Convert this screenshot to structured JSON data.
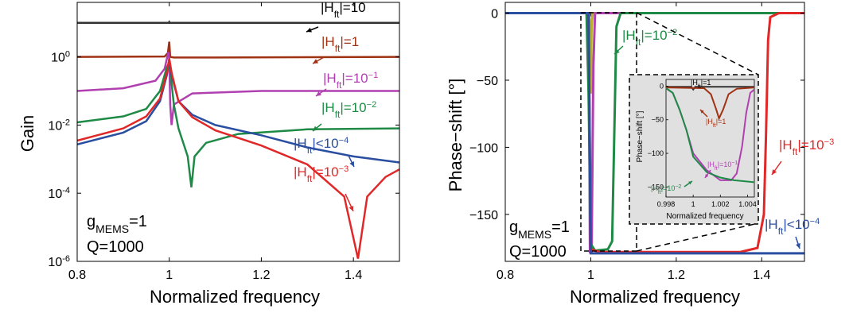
{
  "colors": {
    "black": "#333333",
    "brown": "#a03214",
    "magenta": "#b040b0",
    "green": "#1e8a46",
    "blue": "#2a4ea0",
    "red": "#e02828",
    "olive": "#b8b030",
    "inset_bg": "#e0e0e0"
  },
  "chart_data": [
    {
      "type": "line",
      "title": "",
      "xlabel": "Normalized frequency",
      "ylabel": "Gain",
      "xlim": [
        0.8,
        1.5
      ],
      "ylim_log10": [
        -6,
        1.6
      ],
      "yscale": "log",
      "grid": false,
      "x_ticks": [
        "0.8",
        "1",
        "1.2",
        "1.4"
      ],
      "y_ticks": [
        {
          "base": "10",
          "exp": "-6"
        },
        {
          "base": "10",
          "exp": "-4"
        },
        {
          "base": "10",
          "exp": "-2"
        },
        {
          "base": "10",
          "exp": "0"
        }
      ],
      "params": {
        "g": {
          "sym": "g",
          "sub": "MEMS",
          "rest": "=1"
        },
        "q": "Q=1000"
      },
      "series": [
        {
          "key": "H10",
          "label": {
            "pre": "|H",
            "sub": "ft",
            "post": "|=10",
            "sup": ""
          },
          "color_key": "black",
          "points": [
            [
              0.8,
              10
            ],
            [
              0.999,
              10
            ],
            [
              1.0,
              10.6
            ],
            [
              1.001,
              10
            ],
            [
              1.5,
              10
            ]
          ]
        },
        {
          "key": "H1",
          "label": {
            "pre": "|H",
            "sub": "ft",
            "post": "|=1",
            "sup": ""
          },
          "color_key": "brown",
          "points": [
            [
              0.8,
              1.0
            ],
            [
              0.99,
              1.03
            ],
            [
              0.997,
              1.3
            ],
            [
              1.0,
              2.8
            ],
            [
              1.002,
              1.0
            ],
            [
              1.01,
              0.96
            ],
            [
              1.1,
              0.96
            ],
            [
              1.5,
              1.0
            ]
          ]
        },
        {
          "key": "Hm1",
          "label": {
            "pre": "|H",
            "sub": "ft",
            "post": "|=10",
            "sup": "−1"
          },
          "color_key": "magenta",
          "points": [
            [
              0.8,
              0.1
            ],
            [
              0.9,
              0.12
            ],
            [
              0.97,
              0.2
            ],
            [
              0.99,
              0.45
            ],
            [
              0.998,
              1.4
            ],
            [
              1.0,
              0.9
            ],
            [
              1.002,
              0.04
            ],
            [
              1.005,
              0.01
            ],
            [
              1.01,
              0.04
            ],
            [
              1.05,
              0.085
            ],
            [
              1.2,
              0.1
            ],
            [
              1.5,
              0.1
            ]
          ]
        },
        {
          "key": "Hm2",
          "label": {
            "pre": "|H",
            "sub": "ft",
            "post": "|=10",
            "sup": "−2"
          },
          "color_key": "green",
          "points": [
            [
              0.8,
              0.012
            ],
            [
              0.9,
              0.018
            ],
            [
              0.95,
              0.03
            ],
            [
              0.98,
              0.1
            ],
            [
              0.995,
              0.5
            ],
            [
              1.0,
              0.7
            ],
            [
              1.01,
              0.04
            ],
            [
              1.02,
              0.008
            ],
            [
              1.04,
              0.0012
            ],
            [
              1.048,
              0.00015
            ],
            [
              1.055,
              0.0012
            ],
            [
              1.08,
              0.003
            ],
            [
              1.15,
              0.0055
            ],
            [
              1.3,
              0.0075
            ],
            [
              1.5,
              0.008
            ]
          ]
        },
        {
          "key": "Hlt4",
          "label": {
            "pre": "|H",
            "sub": "ft",
            "post": "|<10",
            "sup": "−4"
          },
          "color_key": "blue",
          "points": [
            [
              0.8,
              0.0027
            ],
            [
              0.9,
              0.006
            ],
            [
              0.95,
              0.013
            ],
            [
              0.98,
              0.05
            ],
            [
              0.995,
              0.3
            ],
            [
              1.0,
              0.85
            ],
            [
              1.005,
              0.3
            ],
            [
              1.02,
              0.05
            ],
            [
              1.05,
              0.02
            ],
            [
              1.1,
              0.01
            ],
            [
              1.2,
              0.005
            ],
            [
              1.3,
              0.0022
            ],
            [
              1.4,
              0.0012
            ],
            [
              1.5,
              0.0008
            ]
          ]
        },
        {
          "key": "Hm3",
          "label": {
            "pre": "|H",
            "sub": "ft",
            "post": "|=10",
            "sup": "−3"
          },
          "color_key": "red",
          "points": [
            [
              0.8,
              0.0035
            ],
            [
              0.9,
              0.008
            ],
            [
              0.95,
              0.018
            ],
            [
              0.98,
              0.06
            ],
            [
              0.995,
              0.35
            ],
            [
              1.0,
              0.9
            ],
            [
              1.005,
              0.35
            ],
            [
              1.02,
              0.05
            ],
            [
              1.05,
              0.017
            ],
            [
              1.1,
              0.007
            ],
            [
              1.2,
              0.0025
            ],
            [
              1.3,
              0.0007
            ],
            [
              1.38,
              8e-05
            ],
            [
              1.41,
              1.2e-06
            ],
            [
              1.43,
              8e-05
            ],
            [
              1.47,
              0.0003
            ],
            [
              1.5,
              0.0005
            ]
          ]
        }
      ]
    },
    {
      "type": "line",
      "title": "",
      "xlabel": "Normalized frequency",
      "ylabel": "Phase−shift [°]",
      "xlim": [
        0.8,
        1.5
      ],
      "ylim": [
        -185,
        8
      ],
      "grid": false,
      "x_ticks": [
        "0.8",
        "1",
        "1.2",
        "1.4"
      ],
      "y_ticks": [
        "0",
        "−50",
        "−100",
        "−150"
      ],
      "params": {
        "g": {
          "sym": "g",
          "sub": "MEMS",
          "rest": "=1"
        },
        "q": "Q=1000"
      },
      "series": [
        {
          "key": "H10",
          "color_key": "black",
          "points": [
            [
              0.8,
              0
            ],
            [
              0.998,
              0
            ],
            [
              1.0,
              -1
            ],
            [
              1.002,
              0
            ],
            [
              1.5,
              0
            ]
          ]
        },
        {
          "key": "H1",
          "color_key": "olive",
          "points": [
            [
              0.8,
              0
            ],
            [
              0.996,
              0
            ],
            [
              0.998,
              -10
            ],
            [
              1.0,
              -60
            ],
            [
              1.002,
              -10
            ],
            [
              1.004,
              0
            ],
            [
              1.5,
              0
            ]
          ]
        },
        {
          "key": "Hm1",
          "color_key": "magenta",
          "points": [
            [
              0.8,
              0
            ],
            [
              0.994,
              0
            ],
            [
              0.996,
              -40
            ],
            [
              0.998,
              -178
            ],
            [
              1.002,
              -178
            ],
            [
              1.006,
              -40
            ],
            [
              1.01,
              0
            ],
            [
              1.5,
              0
            ]
          ]
        },
        {
          "key": "Hm2",
          "label": {
            "pre": "|H",
            "sub": "ft",
            "post": "|=10",
            "sup": "−2"
          },
          "color_key": "green",
          "points": [
            [
              0.8,
              0
            ],
            [
              0.99,
              0
            ],
            [
              0.995,
              -60
            ],
            [
              1.0,
              -172
            ],
            [
              1.01,
              -177
            ],
            [
              1.04,
              -176
            ],
            [
              1.05,
              -170
            ],
            [
              1.055,
              -90
            ],
            [
              1.06,
              -10
            ],
            [
              1.07,
              0
            ],
            [
              1.5,
              0
            ]
          ]
        },
        {
          "key": "Hm3",
          "label": {
            "pre": "|H",
            "sub": "ft",
            "post": "|=10",
            "sup": "−3"
          },
          "color_key": "red",
          "points": [
            [
              0.8,
              0
            ],
            [
              0.995,
              0
            ],
            [
              1.0,
              -176
            ],
            [
              1.02,
              -178
            ],
            [
              1.35,
              -178
            ],
            [
              1.39,
              -175
            ],
            [
              1.405,
              -150
            ],
            [
              1.41,
              -90
            ],
            [
              1.415,
              -20
            ],
            [
              1.42,
              -3
            ],
            [
              1.44,
              0
            ],
            [
              1.5,
              0
            ]
          ]
        },
        {
          "key": "Hlt4",
          "label": {
            "pre": "|H",
            "sub": "ft",
            "post": "|<10",
            "sup": "−4"
          },
          "color_key": "blue",
          "points": [
            [
              0.8,
              0
            ],
            [
              0.995,
              0
            ],
            [
              1.0,
              -179
            ],
            [
              1.5,
              -179
            ]
          ]
        }
      ],
      "inset": {
        "xlim": [
          0.998,
          1.0045
        ],
        "ylim": [
          -165,
          10
        ],
        "xlabel": "Normalized frequency",
        "ylabel": "Phase−shift [°]",
        "x_ticks": [
          "0.998",
          "1",
          "1.002",
          "1.004"
        ],
        "y_ticks": [
          "0",
          "−50",
          "−100",
          "−150"
        ],
        "labels": {
          "H1_top": {
            "pre": "|H",
            "sub": "ft",
            "post": "|=1",
            "sup": ""
          },
          "H1": {
            "pre": "|H",
            "sub": "ft",
            "post": "|=1",
            "sup": ""
          },
          "Hm1": {
            "pre": "|H",
            "sub": "ft",
            "post": "|=10",
            "sup": "−1"
          },
          "Hm2": {
            "pre": "|H",
            "sub": "ft",
            "post": "|=10",
            "sup": "−2"
          }
        },
        "series": [
          {
            "key": "H10",
            "color_key": "black",
            "points": [
              [
                0.998,
                -1
              ],
              [
                0.99985,
                -1
              ],
              [
                1.0,
                -5
              ],
              [
                1.00015,
                -1
              ],
              [
                1.0045,
                -1
              ]
            ]
          },
          {
            "key": "H1",
            "color_key": "brown",
            "points": [
              [
                0.998,
                -2
              ],
              [
                1.0008,
                -3
              ],
              [
                1.0013,
                -12
              ],
              [
                1.0017,
                -35
              ],
              [
                1.0019,
                -48
              ],
              [
                1.0022,
                -35
              ],
              [
                1.0026,
                -12
              ],
              [
                1.0032,
                -4
              ],
              [
                1.0045,
                -2
              ]
            ]
          },
          {
            "key": "Hm1",
            "color_key": "magenta",
            "points": [
              [
                0.998,
                -3
              ],
              [
                0.9985,
                -10
              ],
              [
                0.999,
                -35
              ],
              [
                0.9995,
                -65
              ],
              [
                1.0,
                -100
              ],
              [
                1.001,
                -125
              ],
              [
                1.002,
                -140
              ],
              [
                1.0028,
                -140
              ],
              [
                1.0032,
                -130
              ],
              [
                1.0036,
                -90
              ],
              [
                1.0039,
                -40
              ],
              [
                1.0042,
                -10
              ],
              [
                1.0045,
                -5
              ]
            ]
          },
          {
            "key": "Hm2",
            "color_key": "green",
            "points": [
              [
                0.998,
                -3
              ],
              [
                0.9985,
                -10
              ],
              [
                0.999,
                -35
              ],
              [
                0.9995,
                -65
              ],
              [
                1.0,
                -105
              ],
              [
                1.001,
                -128
              ],
              [
                1.002,
                -136
              ],
              [
                1.003,
                -140
              ],
              [
                1.0045,
                -143
              ]
            ]
          }
        ]
      }
    }
  ]
}
